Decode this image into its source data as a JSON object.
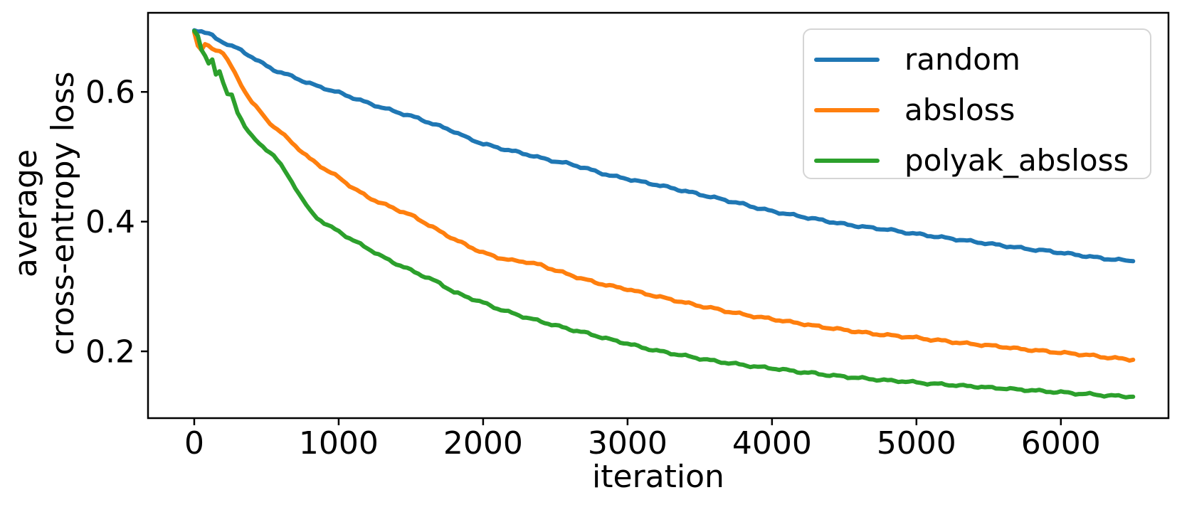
{
  "figure": {
    "background": "#ffffff",
    "text_color": "#000000",
    "spine_color": "#000000"
  },
  "chart_data": {
    "type": "line",
    "title": "",
    "xlabel": "iteration",
    "ylabel": "average cross-entropy loss",
    "ylabel_lines": [
      "average",
      "cross-entropy loss"
    ],
    "xlim": [
      -320,
      6745
    ],
    "ylim": [
      0.097,
      0.722
    ],
    "x_ticks": [
      0,
      1000,
      2000,
      3000,
      4000,
      5000,
      6000
    ],
    "y_ticks": [
      0.2,
      0.4,
      0.6
    ],
    "grid": false,
    "legend_position": "upper right",
    "x": [
      0,
      25,
      50,
      75,
      100,
      125,
      150,
      175,
      200,
      230,
      260,
      300,
      350,
      400,
      450,
      500,
      550,
      600,
      650,
      700,
      750,
      800,
      850,
      900,
      950,
      1000,
      1100,
      1200,
      1300,
      1400,
      1500,
      1600,
      1700,
      1800,
      1900,
      2000,
      2100,
      2200,
      2300,
      2400,
      2500,
      2600,
      2700,
      2800,
      2900,
      3000,
      3100,
      3200,
      3300,
      3400,
      3500,
      3600,
      3700,
      3800,
      3900,
      4000,
      4100,
      4200,
      4300,
      4400,
      4500,
      4600,
      4700,
      4800,
      4900,
      5000,
      5100,
      5200,
      5300,
      5400,
      5500,
      5600,
      5700,
      5800,
      5900,
      6000,
      6100,
      6200,
      6300,
      6400,
      6500
    ],
    "series": [
      {
        "name": "random",
        "color": "#1f77b4",
        "values": [
          0.695,
          0.6945,
          0.694,
          0.692,
          0.69,
          0.6865,
          0.682,
          0.679,
          0.6765,
          0.674,
          0.671,
          0.667,
          0.66,
          0.654,
          0.647,
          0.64,
          0.634,
          0.63,
          0.626,
          0.622,
          0.617,
          0.613,
          0.609,
          0.606,
          0.602,
          0.599,
          0.591,
          0.583,
          0.576,
          0.569,
          0.563,
          0.555,
          0.547,
          0.539,
          0.528,
          0.52,
          0.514,
          0.509,
          0.504,
          0.498,
          0.493,
          0.489,
          0.483,
          0.476,
          0.47,
          0.466,
          0.461,
          0.457,
          0.452,
          0.447,
          0.442,
          0.437,
          0.432,
          0.427,
          0.421,
          0.416,
          0.412,
          0.408,
          0.404,
          0.4,
          0.396,
          0.393,
          0.39,
          0.388,
          0.384,
          0.381,
          0.378,
          0.375,
          0.372,
          0.369,
          0.366,
          0.363,
          0.36,
          0.357,
          0.355,
          0.352,
          0.349,
          0.346,
          0.343,
          0.341,
          0.339
        ]
      },
      {
        "name": "absloss",
        "color": "#ff7f0e",
        "values": [
          0.693,
          0.672,
          0.666,
          0.673,
          0.67,
          0.666,
          0.663,
          0.664,
          0.661,
          0.65,
          0.638,
          0.62,
          0.601,
          0.585,
          0.571,
          0.557,
          0.547,
          0.538,
          0.527,
          0.517,
          0.507,
          0.497,
          0.489,
          0.482,
          0.475,
          0.468,
          0.452,
          0.438,
          0.428,
          0.419,
          0.41,
          0.398,
          0.385,
          0.373,
          0.362,
          0.352,
          0.345,
          0.34,
          0.338,
          0.333,
          0.325,
          0.318,
          0.311,
          0.305,
          0.3,
          0.296,
          0.29,
          0.285,
          0.28,
          0.275,
          0.27,
          0.266,
          0.261,
          0.257,
          0.253,
          0.25,
          0.246,
          0.243,
          0.239,
          0.236,
          0.233,
          0.23,
          0.227,
          0.225,
          0.223,
          0.221,
          0.218,
          0.216,
          0.213,
          0.211,
          0.209,
          0.207,
          0.204,
          0.202,
          0.2,
          0.198,
          0.196,
          0.194,
          0.191,
          0.189,
          0.187
        ]
      },
      {
        "name": "polyak_absloss",
        "color": "#2ca02c",
        "values": [
          0.695,
          0.688,
          0.664,
          0.655,
          0.643,
          0.649,
          0.628,
          0.633,
          0.615,
          0.597,
          0.594,
          0.568,
          0.548,
          0.532,
          0.519,
          0.511,
          0.503,
          0.487,
          0.47,
          0.453,
          0.434,
          0.417,
          0.406,
          0.398,
          0.391,
          0.385,
          0.371,
          0.359,
          0.346,
          0.335,
          0.325,
          0.315,
          0.305,
          0.291,
          0.283,
          0.275,
          0.266,
          0.259,
          0.252,
          0.246,
          0.24,
          0.234,
          0.229,
          0.223,
          0.217,
          0.212,
          0.206,
          0.201,
          0.197,
          0.193,
          0.189,
          0.185,
          0.182,
          0.179,
          0.176,
          0.174,
          0.171,
          0.168,
          0.166,
          0.163,
          0.161,
          0.159,
          0.157,
          0.155,
          0.154,
          0.152,
          0.15,
          0.149,
          0.147,
          0.146,
          0.144,
          0.143,
          0.141,
          0.14,
          0.138,
          0.137,
          0.135,
          0.134,
          0.132,
          0.131,
          0.13
        ]
      }
    ]
  }
}
